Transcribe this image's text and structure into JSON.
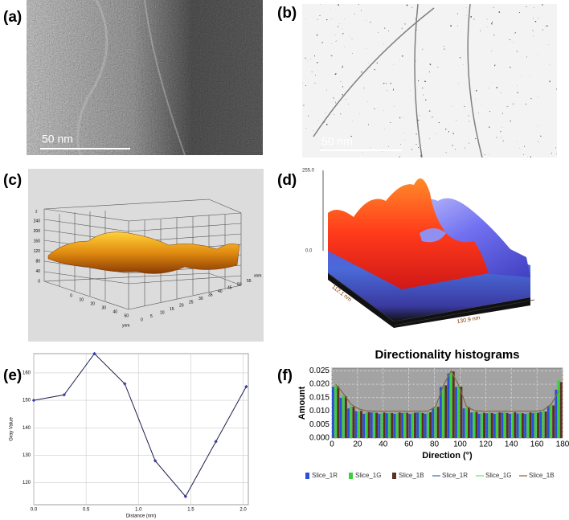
{
  "panels": {
    "a": {
      "label": "(a)",
      "scale_bar": "50 nm"
    },
    "b": {
      "label": "(b)",
      "scale_bar": "50 nm"
    },
    "c": {
      "label": "(c)",
      "z_label": "z",
      "z_ticks": [
        "0",
        "40",
        "80",
        "120",
        "160",
        "200",
        "240"
      ],
      "y_label": "ynm",
      "y_ticks": [
        "0",
        "10",
        "20",
        "30",
        "40",
        "50"
      ],
      "x_label": "xnm",
      "x_ticks": [
        "0",
        "5",
        "10",
        "15",
        "20",
        "25",
        "30",
        "35",
        "40",
        "45",
        "50",
        "55"
      ]
    },
    "d": {
      "label": "(d)",
      "z_max": "255.0",
      "z_min": "0.0",
      "y_extent": "112.1 nm",
      "x_extent": "130.9 nm"
    },
    "e": {
      "label": "(e)"
    },
    "f": {
      "label": "(f)"
    }
  },
  "chart_data": [
    {
      "type": "line",
      "xlabel": "Distance (nm)",
      "ylabel": "Gray Value",
      "color": "#1b1f4a",
      "marker_color": "#3b3bb0",
      "x": [
        0,
        0.29,
        0.58,
        0.87,
        1.16,
        1.45,
        1.74,
        2.03
      ],
      "values": [
        150,
        152,
        167,
        156,
        128,
        115,
        135,
        155
      ],
      "xlim": [
        0,
        2.05
      ],
      "ylim": [
        112,
        167
      ],
      "xticks": [
        {
          "value": 0,
          "label": "0.0"
        },
        {
          "value": 0.5,
          "label": "0.5"
        },
        {
          "value": 1,
          "label": "1.0"
        },
        {
          "value": 1.5,
          "label": "1.5"
        },
        {
          "value": 2,
          "label": "2.0"
        }
      ],
      "yticks": [
        120,
        130,
        140,
        150,
        160
      ],
      "grid": true
    },
    {
      "type": "bar",
      "title": "Directionality histograms",
      "xlabel": "Direction (°)",
      "ylabel": "Amount",
      "x": [
        0,
        6,
        12,
        18,
        24,
        30,
        36,
        42,
        48,
        54,
        60,
        66,
        72,
        78,
        84,
        90,
        96,
        102,
        108,
        114,
        120,
        126,
        132,
        138,
        144,
        150,
        156,
        162,
        168,
        174
      ],
      "xlim": [
        0,
        180
      ],
      "ylim": [
        0,
        0.026
      ],
      "xticks": [
        0,
        20,
        40,
        60,
        80,
        100,
        120,
        140,
        160,
        180
      ],
      "yticks": [
        {
          "value": 0,
          "label": "0.000"
        },
        {
          "value": 0.005,
          "label": "0.005"
        },
        {
          "value": 0.01,
          "label": "0.010"
        },
        {
          "value": 0.015,
          "label": "0.015"
        },
        {
          "value": 0.02,
          "label": "0.020"
        },
        {
          "value": 0.025,
          "label": "0.025"
        }
      ],
      "grid": true,
      "legend": "bottom",
      "series": [
        {
          "name": "Slice_1R",
          "type": "bar",
          "color": "#2b4fd8",
          "values": [
            0.019,
            0.015,
            0.011,
            0.01,
            0.009,
            0.0095,
            0.009,
            0.0092,
            0.009,
            0.0093,
            0.009,
            0.0095,
            0.009,
            0.011,
            0.019,
            0.024,
            0.019,
            0.011,
            0.0095,
            0.009,
            0.0092,
            0.009,
            0.0094,
            0.009,
            0.0091,
            0.009,
            0.0093,
            0.0098,
            0.012,
            0.018
          ]
        },
        {
          "name": "Slice_1G",
          "type": "bar",
          "color": "#3ccf3c",
          "values": [
            0.0195,
            0.0158,
            0.0118,
            0.0099,
            0.0094,
            0.0097,
            0.0092,
            0.0094,
            0.0093,
            0.0096,
            0.0092,
            0.0097,
            0.0094,
            0.0114,
            0.0192,
            0.0245,
            0.0193,
            0.0113,
            0.0098,
            0.0092,
            0.0095,
            0.0093,
            0.0096,
            0.0093,
            0.0094,
            0.0092,
            0.0096,
            0.0101,
            0.0123,
            0.0215
          ]
        },
        {
          "name": "Slice_1B",
          "type": "bar",
          "color": "#5a3020",
          "values": [
            0.0192,
            0.0155,
            0.0116,
            0.0101,
            0.0096,
            0.0094,
            0.0095,
            0.0093,
            0.0095,
            0.0094,
            0.0094,
            0.0093,
            0.0096,
            0.0116,
            0.0196,
            0.0248,
            0.0191,
            0.0115,
            0.0097,
            0.0094,
            0.0093,
            0.0095,
            0.0093,
            0.0096,
            0.0092,
            0.0095,
            0.0094,
            0.0099,
            0.0121,
            0.0208
          ]
        },
        {
          "name": "Slice_1R",
          "type": "line",
          "color": "#3b63c8",
          "values": [
            0.02,
            0.0165,
            0.0125,
            0.0108,
            0.0101,
            0.01,
            0.01,
            0.01,
            0.01,
            0.01,
            0.01,
            0.01,
            0.01,
            0.0118,
            0.0195,
            0.025,
            0.0195,
            0.0118,
            0.0102,
            0.01,
            0.01,
            0.01,
            0.01,
            0.01,
            0.01,
            0.01,
            0.01,
            0.0104,
            0.0125,
            0.0175
          ]
        },
        {
          "name": "Slice_1G",
          "type": "line",
          "color": "#6ee06e",
          "values": [
            0.02,
            0.0165,
            0.0125,
            0.0108,
            0.0101,
            0.01,
            0.01,
            0.01,
            0.01,
            0.01,
            0.01,
            0.01,
            0.01,
            0.0118,
            0.0195,
            0.025,
            0.0195,
            0.0118,
            0.0102,
            0.01,
            0.01,
            0.01,
            0.01,
            0.01,
            0.01,
            0.01,
            0.01,
            0.0104,
            0.0125,
            0.0175
          ]
        },
        {
          "name": "Slice_1B",
          "type": "line",
          "color": "#8a5a3a",
          "values": [
            0.02,
            0.0165,
            0.0125,
            0.0108,
            0.0101,
            0.01,
            0.01,
            0.01,
            0.01,
            0.01,
            0.01,
            0.01,
            0.01,
            0.0118,
            0.0195,
            0.025,
            0.0195,
            0.0118,
            0.0102,
            0.01,
            0.01,
            0.01,
            0.01,
            0.01,
            0.01,
            0.01,
            0.01,
            0.0104,
            0.0125,
            0.0175
          ]
        }
      ]
    }
  ]
}
